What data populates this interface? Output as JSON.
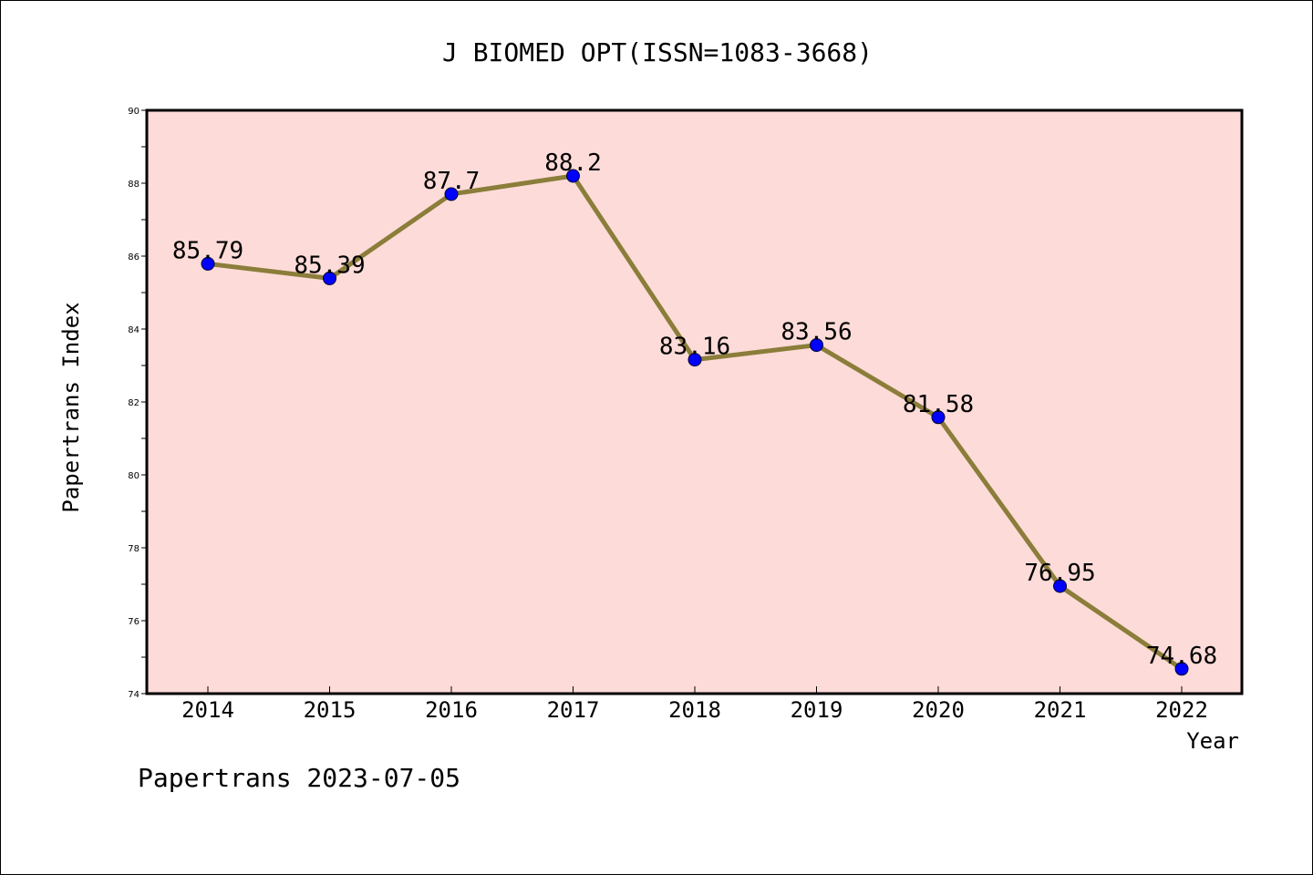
{
  "chart_data": {
    "type": "line",
    "title": "J BIOMED OPT(ISSN=1083-3668)",
    "xlabel": "Year",
    "ylabel": "Papertrans Index",
    "categories": [
      "2014",
      "2015",
      "2016",
      "2017",
      "2018",
      "2019",
      "2020",
      "2021",
      "2022"
    ],
    "series": [
      {
        "values": [
          85.79,
          85.39,
          87.7,
          88.2,
          83.16,
          83.56,
          81.58,
          76.95,
          74.68
        ],
        "value_labels": [
          "85.79",
          "85.39",
          "87.7",
          "88.2",
          "83.16",
          "83.56",
          "81.58",
          "76.95",
          "74.68"
        ]
      }
    ],
    "ylim": [
      74,
      90
    ],
    "yticks": [
      "74",
      "76",
      "78",
      "80",
      "82",
      "84",
      "86",
      "88",
      "90"
    ],
    "grid": false,
    "legend": "none",
    "colors": {
      "plot_background": "#fddbd8",
      "line": "#8b7d3a",
      "marker": "#0000ff"
    }
  },
  "footer": {
    "text": "Papertrans 2023-07-05"
  }
}
